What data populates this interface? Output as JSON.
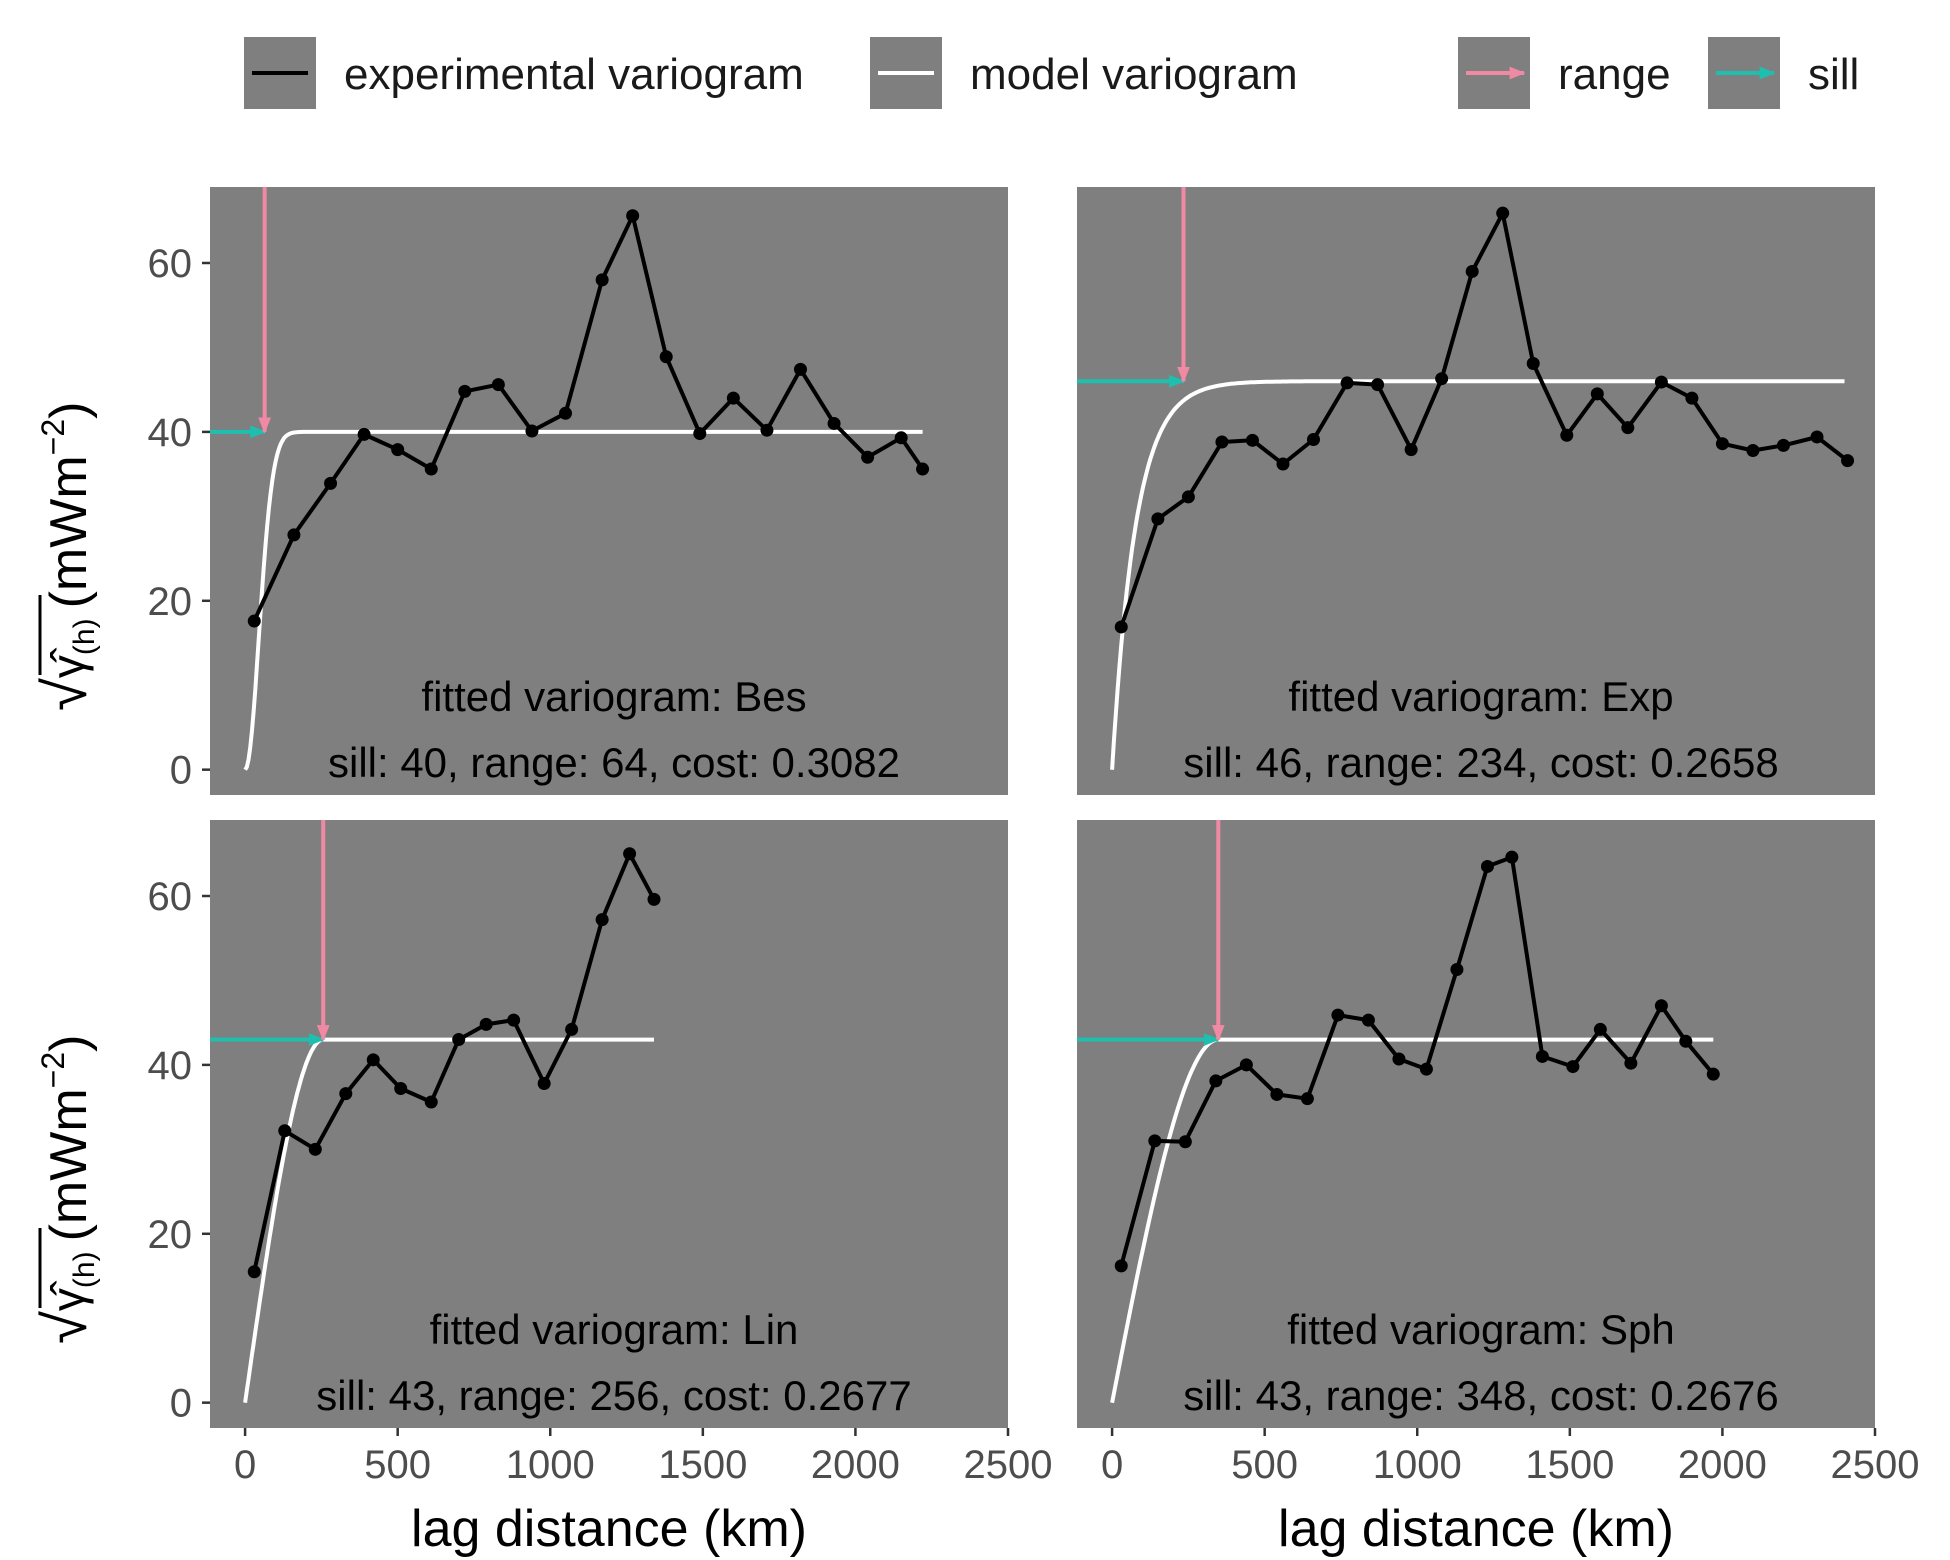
{
  "legend": {
    "items": [
      {
        "label": "experimental variogram",
        "key": "experimental",
        "color": "#000000"
      },
      {
        "label": "model variogram",
        "key": "model",
        "color": "#ffffff"
      },
      {
        "label": "range",
        "key": "range-arrow",
        "color": "#f08aa4"
      },
      {
        "label": "sill",
        "key": "sill-arrow",
        "color": "#1fbfb0"
      }
    ]
  },
  "colors": {
    "panel_bg": "#7f7f7f",
    "experimental": "#000000",
    "model": "#ffffff",
    "range": "#f08aa4",
    "sill": "#1fbfb0",
    "key_bg": "#7f7f7f"
  },
  "axes": {
    "xlabel": "lag distance (km)",
    "ylabel_sqrt": "√",
    "ylabel_gamma": "γ̂",
    "ylabel_sub": "(h)",
    "ylabel_unit": "(mWm",
    "ylabel_exp": "−2",
    "ylabel_close": ")"
  },
  "chart_data": [
    {
      "type": "line",
      "panel": "Bes",
      "title": "fitted variogram: Bes",
      "stats": "sill: 40, range: 64, cost: 0.3082",
      "sill": 40,
      "range": 64,
      "cost": 0.3082,
      "xlim": [
        -115,
        2500
      ],
      "ylim": [
        -3,
        69
      ],
      "xticks": [
        0,
        500,
        1000,
        1500,
        2000,
        2500
      ],
      "yticks": [
        0,
        20,
        40,
        60
      ],
      "model_end": 2220,
      "experimental": {
        "x": [
          30,
          160,
          280,
          390,
          500,
          610,
          720,
          830,
          940,
          1050,
          1170,
          1270,
          1380,
          1490,
          1600,
          1710,
          1820,
          1930,
          2040,
          2150,
          2220
        ],
        "y": [
          17.6,
          27.8,
          33.9,
          39.7,
          37.9,
          35.6,
          44.8,
          45.6,
          40.1,
          42.2,
          58.0,
          65.6,
          48.9,
          39.8,
          44.0,
          40.2,
          47.4,
          41.0,
          37.0,
          39.3,
          35.6
        ]
      }
    },
    {
      "type": "line",
      "panel": "Exp",
      "title": "fitted variogram: Exp",
      "stats": "sill: 46, range: 234, cost: 0.2658",
      "sill": 46,
      "range": 234,
      "cost": 0.2658,
      "xlim": [
        -115,
        2500
      ],
      "ylim": [
        -3,
        69
      ],
      "xticks": [
        0,
        500,
        1000,
        1500,
        2000,
        2500
      ],
      "yticks": [
        0,
        20,
        40,
        60
      ],
      "model_end": 2400,
      "experimental": {
        "x": [
          30,
          150,
          250,
          360,
          460,
          560,
          660,
          770,
          870,
          980,
          1080,
          1180,
          1280,
          1380,
          1490,
          1590,
          1690,
          1800,
          1900,
          2000,
          2100,
          2200,
          2310,
          2410
        ],
        "y": [
          16.9,
          29.7,
          32.3,
          38.8,
          39.0,
          36.2,
          39.1,
          45.8,
          45.6,
          37.9,
          46.3,
          59.0,
          65.9,
          48.1,
          39.6,
          44.5,
          40.5,
          45.9,
          44.0,
          38.6,
          37.8,
          38.4,
          39.4,
          36.6
        ]
      }
    },
    {
      "type": "line",
      "panel": "Lin",
      "title": "fitted variogram: Lin",
      "stats": "sill: 43, range: 256, cost: 0.2677",
      "sill": 43,
      "range": 256,
      "cost": 0.2677,
      "xlim": [
        -115,
        2500
      ],
      "ylim": [
        -3,
        69
      ],
      "xticks": [
        0,
        500,
        1000,
        1500,
        2000,
        2500
      ],
      "yticks": [
        0,
        20,
        40,
        60
      ],
      "model_end": 1340,
      "experimental": {
        "x": [
          30,
          130,
          230,
          330,
          420,
          510,
          610,
          700,
          790,
          880,
          980,
          1070,
          1170,
          1260,
          1340
        ],
        "y": [
          15.5,
          32.2,
          30.0,
          36.6,
          40.6,
          37.2,
          35.6,
          43.0,
          44.8,
          45.3,
          37.8,
          44.2,
          57.2,
          65.0,
          59.6
        ]
      }
    },
    {
      "type": "line",
      "panel": "Sph",
      "title": "fitted variogram: Sph",
      "stats": "sill: 43, range: 348, cost: 0.2676",
      "sill": 43,
      "range": 348,
      "cost": 0.2676,
      "xlim": [
        -115,
        2500
      ],
      "ylim": [
        -3,
        69
      ],
      "xticks": [
        0,
        500,
        1000,
        1500,
        2000,
        2500
      ],
      "yticks": [
        0,
        20,
        40,
        60
      ],
      "model_end": 1970,
      "experimental": {
        "x": [
          30,
          140,
          240,
          340,
          440,
          540,
          640,
          740,
          840,
          940,
          1030,
          1130,
          1230,
          1310,
          1410,
          1510,
          1600,
          1700,
          1800,
          1880,
          1970
        ],
        "y": [
          16.2,
          31.0,
          30.9,
          38.1,
          40.0,
          36.5,
          36.0,
          45.9,
          45.3,
          40.7,
          39.5,
          51.3,
          63.5,
          64.6,
          41.0,
          39.8,
          44.2,
          40.2,
          47.0,
          42.8,
          38.9
        ]
      }
    }
  ]
}
